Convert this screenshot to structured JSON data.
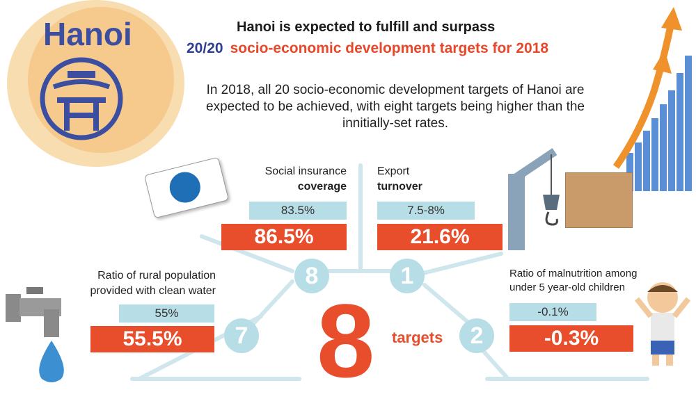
{
  "logo": {
    "name": "Hanoi"
  },
  "header": {
    "line1": "Hanoi is expected to fulfill and surpass",
    "line2_lead": "20/20",
    "line2_rest": "socio-economic development targets for 2018"
  },
  "intro": "In 2018, all 20 socio-economic development targets of Hanoi are expected to be achieved, with eight targets being higher than the innitially-set rates.",
  "center": {
    "count": "8",
    "word": "targets"
  },
  "targets": [
    {
      "number": "8",
      "label_line1": "Social insurance",
      "label_line2": "coverage",
      "planned": "83.5%",
      "expected": "86.5%"
    },
    {
      "number": "1",
      "label_line1": "Export",
      "label_line2": "turnover",
      "planned": "7.5-8%",
      "expected": "21.6%"
    },
    {
      "number": "7",
      "label_line1": "Ratio of rural population",
      "label_line2": "provided with clean water",
      "planned": "55%",
      "expected": "55.5%"
    },
    {
      "number": "2",
      "label_line1": "Ratio of malnutrition among",
      "label_line2": "under 5 year-old children",
      "planned": "-0.1%",
      "expected": "-0.3%"
    }
  ],
  "colors": {
    "accent": "#e84e2c",
    "pale_blue": "#b7dde6",
    "navy": "#3b4ea0",
    "logo_bg": "#f6c98c"
  },
  "icons": [
    "hanoi-logo-icon",
    "insurance-card-icon",
    "crane-icon",
    "box-icon",
    "growth-arrow-chart-icon",
    "water-tap-icon",
    "child-icon"
  ]
}
